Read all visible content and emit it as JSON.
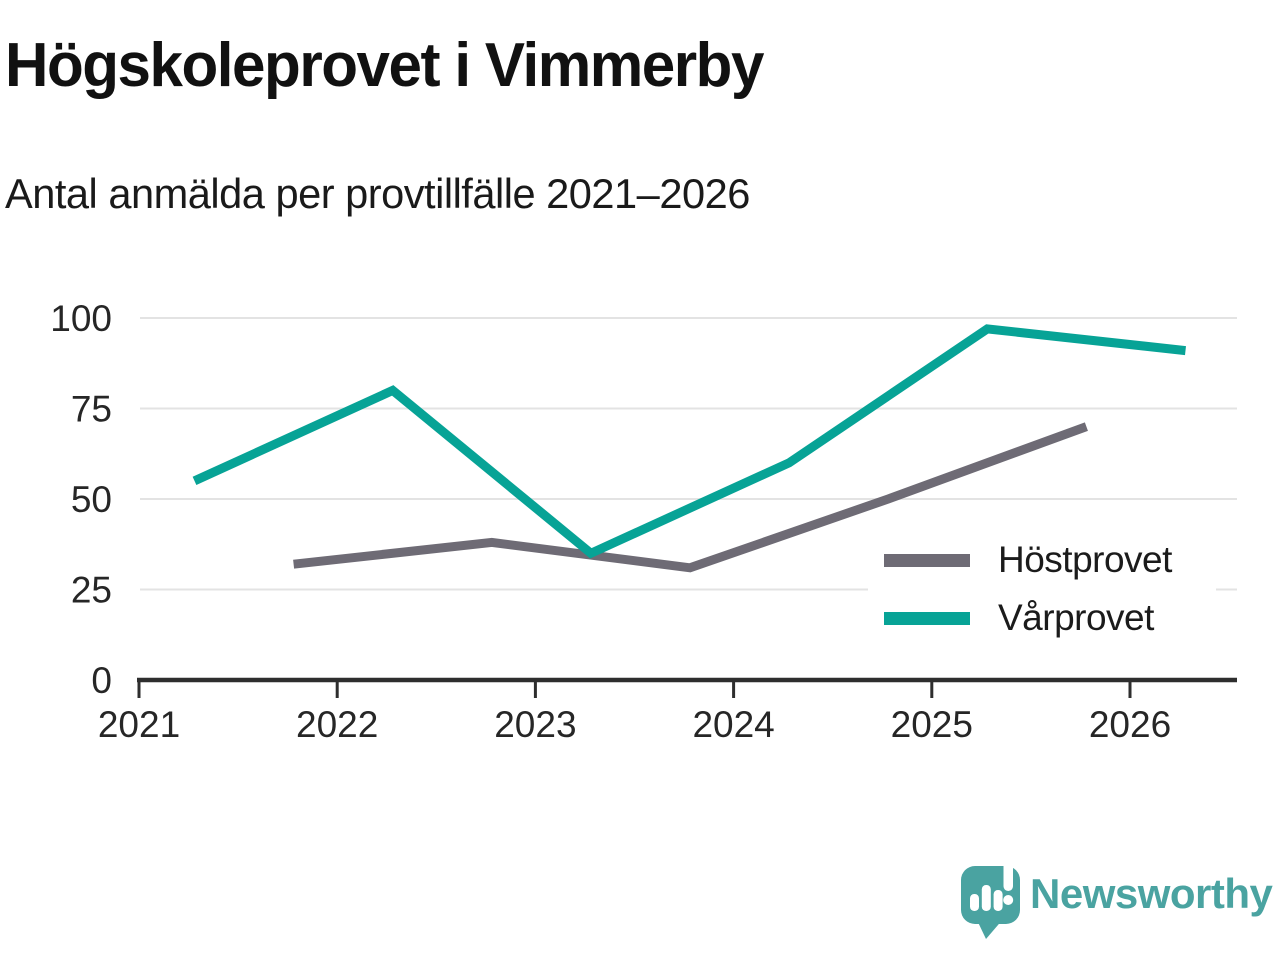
{
  "header": {
    "title": "Högskoleprovet i Vimmerby",
    "subtitle": "Antal anmälda per provtillfälle 2021–2026"
  },
  "chart_data": {
    "type": "line",
    "title": "Högskoleprovet i Vimmerby",
    "subtitle": "Antal anmälda per provtillfälle 2021–2026",
    "xlabel": "",
    "ylabel": "",
    "x_tick_labels": [
      "2021",
      "2022",
      "2023",
      "2024",
      "2025",
      "2026"
    ],
    "x_tick_values": [
      2021,
      2022,
      2023,
      2024,
      2025,
      2026
    ],
    "y_tick_labels": [
      "0",
      "25",
      "50",
      "75",
      "100"
    ],
    "y_tick_values": [
      0,
      25,
      50,
      75,
      100
    ],
    "ylim": [
      0,
      100
    ],
    "xlim": [
      2021,
      2026.55
    ],
    "grid": "horizontal-only",
    "legend_position": "inside-right",
    "series": [
      {
        "name": "Höstprovet",
        "color": "#6e6b75",
        "x": [
          2021.78,
          2022.78,
          2023.78,
          2024.78,
          2025.78
        ],
        "values": [
          32,
          38,
          31,
          50,
          70
        ]
      },
      {
        "name": "Vårprovet",
        "color": "#07a396",
        "x": [
          2021.28,
          2022.28,
          2023.28,
          2024.28,
          2025.28,
          2026.28
        ],
        "values": [
          55,
          80,
          35,
          60,
          97,
          91
        ]
      }
    ]
  },
  "legend": {
    "items": [
      {
        "label": "Höstprovet",
        "color": "#6e6b75"
      },
      {
        "label": "Vårprovet",
        "color": "#07a396"
      }
    ]
  },
  "branding": {
    "wordmark": "Newsworthy",
    "logo_icon": "speech-bubble-bar-chart-exclamation",
    "color": "#4aa3a1"
  },
  "style": {
    "grid_color": "#e3e3e3",
    "axis_color": "#2e2e2e",
    "tick_label_color": "#262626",
    "background": "#ffffff"
  }
}
